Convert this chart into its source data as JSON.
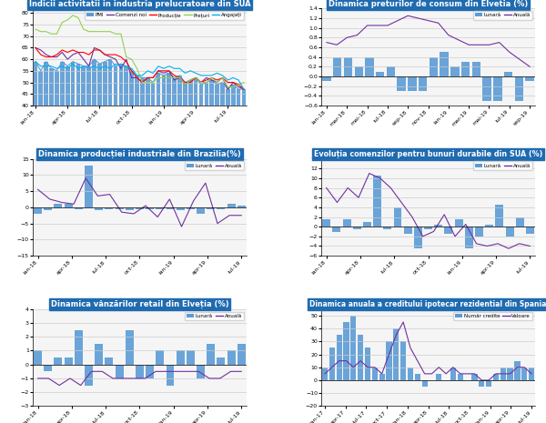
{
  "chart1": {
    "title": "Indicii activitatii in industria prelucratoare din SUA",
    "xlabels": [
      "ian-18",
      "apr-18",
      "iul-18",
      "oct-18",
      "ian-19",
      "apr-19",
      "iul-19"
    ],
    "pmi_bars": [
      59,
      55,
      59,
      56,
      55,
      59,
      57,
      59,
      58,
      57,
      57,
      60,
      58,
      59,
      60,
      57,
      58,
      57,
      55,
      53,
      52,
      52,
      50,
      54,
      53,
      54,
      52,
      53,
      50,
      51,
      52,
      49,
      50,
      51,
      49,
      50,
      47,
      49,
      47,
      47
    ],
    "pmi_line": [
      59,
      55,
      59,
      56,
      55,
      59,
      57,
      59,
      58,
      57,
      57,
      60,
      58,
      59,
      60,
      57,
      58,
      57,
      55,
      53,
      52,
      52,
      50,
      54,
      53,
      54,
      52,
      53,
      50,
      51,
      52,
      49,
      50,
      51,
      49,
      50,
      47,
      49,
      47,
      47
    ],
    "comenzi": [
      65,
      64,
      62,
      61,
      61,
      63,
      60,
      62,
      63,
      60,
      57,
      65,
      64,
      62,
      61,
      60,
      56,
      60,
      52,
      52,
      50,
      52,
      52,
      55,
      54,
      55,
      51,
      52,
      49,
      51,
      52,
      50,
      52,
      51,
      50,
      52,
      47,
      50,
      48,
      47
    ],
    "productie": [
      65,
      62,
      61,
      61,
      62,
      64,
      63,
      64,
      63,
      63,
      62,
      64,
      64,
      62,
      62,
      62,
      61,
      59,
      55,
      52,
      50,
      52,
      52,
      55,
      55,
      55,
      53,
      52,
      50,
      50,
      52,
      50,
      51,
      52,
      51,
      52,
      50,
      50,
      49,
      47
    ],
    "preturi": [
      73,
      72,
      72,
      71,
      71,
      76,
      77,
      79,
      78,
      73,
      72,
      72,
      72,
      72,
      72,
      71,
      71,
      61,
      60,
      56,
      50,
      50,
      50,
      52,
      52,
      52,
      52,
      52,
      49,
      51,
      52,
      50,
      50,
      52,
      50,
      52,
      48,
      48,
      49,
      50
    ],
    "angajati": [
      59,
      57,
      57,
      57,
      56,
      57,
      56,
      58,
      56,
      57,
      56,
      57,
      56,
      57,
      56,
      58,
      57,
      57,
      56,
      53,
      53,
      55,
      54,
      57,
      56,
      57,
      56,
      56,
      54,
      55,
      54,
      53,
      53,
      53,
      54,
      53,
      51,
      52,
      51,
      47
    ],
    "bar_color": "#5B9BD5",
    "comenzi_color": "#7030A0",
    "productie_color": "#FF0000",
    "preturi_color": "#92D050",
    "angajati_color": "#00B0F0",
    "ylim": [
      40,
      82
    ],
    "yticks": [
      40,
      45,
      50,
      55,
      60,
      65,
      70,
      75,
      80
    ]
  },
  "chart2": {
    "title": "Dinamica preturilor de consum din Elvetia (%)",
    "xlabels": [
      "ian-18",
      "mar-18",
      "mai-18",
      "iul-18",
      "sep-18",
      "nov-18",
      "ian-19",
      "mar-19",
      "mai-19",
      "iul-19",
      "sep-19"
    ],
    "lunar": [
      -0.1,
      0.4,
      0.4,
      0.2,
      0.4,
      0.1,
      0.2,
      -0.3,
      -0.3,
      -0.3,
      0.4,
      0.5,
      0.2,
      0.3,
      0.3,
      -0.5,
      -0.5,
      0.1,
      -0.5,
      -0.1
    ],
    "anuala": [
      0.7,
      0.65,
      0.8,
      0.85,
      1.05,
      1.05,
      1.05,
      1.15,
      1.25,
      1.2,
      1.15,
      1.1,
      0.85,
      0.75,
      0.65,
      0.65,
      0.65,
      0.7,
      0.5,
      0.35,
      0.2
    ],
    "bar_color": "#5B9BD5",
    "line_color": "#7030A0",
    "ylim": [
      -0.6,
      1.4
    ],
    "yticks": [
      -0.6,
      -0.4,
      -0.2,
      0.0,
      0.2,
      0.4,
      0.6,
      0.8,
      1.0,
      1.2,
      1.4
    ]
  },
  "chart3": {
    "title": "Dinamica producției industriale din Brazilia(%)",
    "xlabels": [
      "ian-18",
      "apr-18",
      "iul-18",
      "oct-18",
      "ian-19",
      "apr-19",
      "iul-19"
    ],
    "lunar": [
      -2,
      -1,
      1,
      1,
      -0.5,
      13,
      -1,
      -0.5,
      -0.5,
      -1,
      -0.5,
      -0.5,
      -0.5,
      -0.5,
      -1,
      -0.5,
      -2,
      -0.5,
      -0.5,
      1,
      0.5
    ],
    "anuala": [
      5.5,
      2.5,
      1.5,
      1.0,
      9.0,
      3.5,
      4.0,
      -1.5,
      -2.0,
      0.5,
      -3.0,
      2.5,
      -6.0,
      2.0,
      7.5,
      -5.0,
      -2.5,
      -2.5
    ],
    "bar_color": "#5B9BD5",
    "line_color": "#7030A0",
    "ylim": [
      -15,
      15
    ],
    "yticks": [
      -15,
      -10,
      -5,
      0,
      5,
      10,
      15
    ]
  },
  "chart4": {
    "title": "Evoluția comenzilor pentru bunuri durabile din SUA (%)",
    "xlabels": [
      "ian-18",
      "apr-18",
      "iul-18",
      "oct-18",
      "ian-19",
      "apr-19",
      "iul-19"
    ],
    "lunar": [
      1.5,
      -1.0,
      1.5,
      -0.5,
      1.0,
      10.5,
      -0.5,
      4.0,
      -1.5,
      -4.5,
      -0.5,
      0.5,
      -1.5,
      1.5,
      -4.5,
      -2.0,
      0.5,
      4.5,
      -2.0,
      2.0,
      -1.5
    ],
    "anuala": [
      8.0,
      5.0,
      8.0,
      6.0,
      11.0,
      10.0,
      8.0,
      5.0,
      2.0,
      -2.0,
      -1.0,
      2.5,
      -2.0,
      0.5,
      -3.5,
      -4.0,
      -3.5,
      -4.5,
      -3.5,
      -4.0
    ],
    "bar_color": "#5B9BD5",
    "line_color": "#7030A0",
    "ylim": [
      -6,
      14
    ],
    "yticks": [
      -6,
      -4,
      -2,
      0,
      2,
      4,
      6,
      8,
      10,
      12,
      14
    ]
  },
  "chart5": {
    "title": "Dinamica vânzărilor retail din Elveția (%)",
    "xlabels": [
      "ian-18",
      "apr-18",
      "iul-18",
      "oct-18",
      "ian-19",
      "apr-19",
      "iul-19"
    ],
    "lunar": [
      1.0,
      -0.5,
      0.5,
      0.5,
      2.5,
      -1.5,
      1.5,
      0.5,
      -1.0,
      2.5,
      -1.0,
      -1.0,
      1.0,
      -1.5,
      1.0,
      1.0,
      -1.0,
      1.5,
      0.5,
      1.0,
      1.5
    ],
    "anuala": [
      -1.0,
      -1.0,
      -1.5,
      -1.0,
      -1.5,
      -0.5,
      -0.5,
      -1.0,
      -1.0,
      -1.0,
      -1.0,
      -0.5,
      -0.5,
      -0.5,
      -0.5,
      -0.5,
      -1.0,
      -1.0,
      -0.5,
      -0.5
    ],
    "bar_color": "#5B9BD5",
    "line_color": "#7030A0",
    "ylim": [
      -3,
      4
    ],
    "yticks": [
      -3,
      -2,
      -1,
      0,
      1,
      2,
      3,
      4
    ]
  },
  "chart6": {
    "title": "Dinamica anuala a creditului ipotecar rezidential din Spania",
    "xlabels": [
      "ian-17",
      "apr-17",
      "iul-17",
      "oct-17",
      "ian-18",
      "apr-18",
      "iul-18",
      "oct-18",
      "ian-19",
      "apr-19",
      "iul-19"
    ],
    "numar": [
      10,
      25,
      35,
      45,
      50,
      35,
      25,
      10,
      5,
      30,
      40,
      30,
      10,
      5,
      -5,
      0,
      5,
      0,
      10,
      5,
      0,
      5,
      -5,
      -5,
      5,
      10,
      10,
      15,
      10,
      10
    ],
    "valoare": [
      5,
      10,
      15,
      15,
      10,
      15,
      10,
      10,
      5,
      20,
      35,
      45,
      25,
      15,
      5,
      5,
      10,
      5,
      10,
      5,
      5,
      5,
      0,
      0,
      5,
      5,
      5,
      10,
      10,
      5
    ],
    "bar_color": "#5B9BD5",
    "line_color": "#7030A0",
    "ylim": [
      -20,
      55
    ],
    "yticks": [
      -20,
      -10,
      0,
      10,
      20,
      30,
      40,
      50
    ]
  },
  "title_bg_color": "#1F6BB0",
  "title_text_color": "#FFFFFF",
  "bg_color": "#FFFFFF",
  "grid_color": "#CCCCCC"
}
